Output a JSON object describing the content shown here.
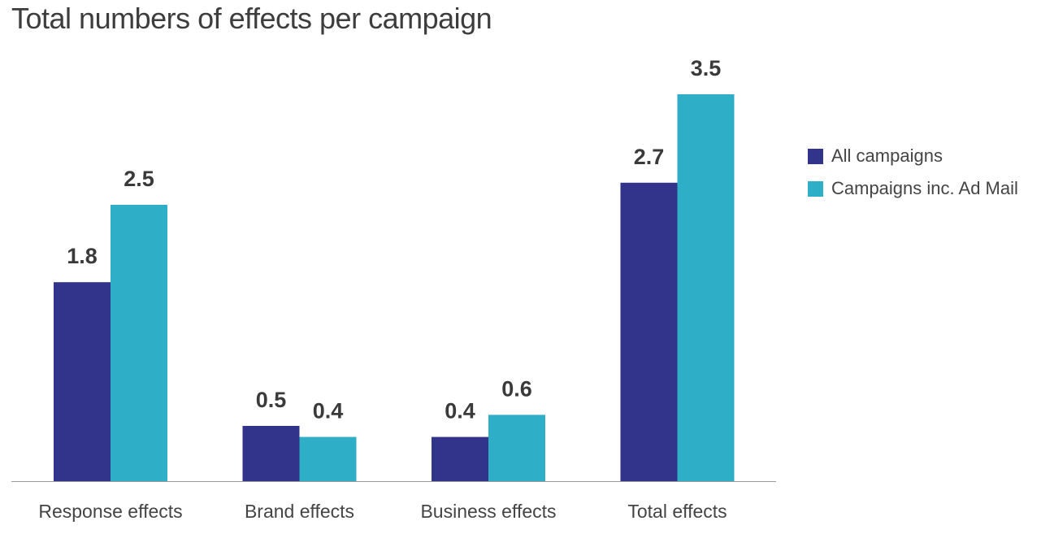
{
  "chart_data": {
    "type": "bar",
    "title": "Total numbers of effects per campaign",
    "categories": [
      "Response effects",
      "Brand effects",
      "Business effects",
      "Total effects"
    ],
    "series": [
      {
        "name": "All campaigns",
        "color": "#31348A",
        "values": [
          1.8,
          0.5,
          0.4,
          2.7
        ]
      },
      {
        "name": "Campaigns inc. Ad Mail",
        "color": "#2FAEC7",
        "values": [
          2.5,
          0.4,
          0.6,
          3.5
        ]
      }
    ],
    "xlabel": "",
    "ylabel": "",
    "ylim": [
      0,
      3.5
    ],
    "grid": false,
    "legend_position": "right"
  }
}
